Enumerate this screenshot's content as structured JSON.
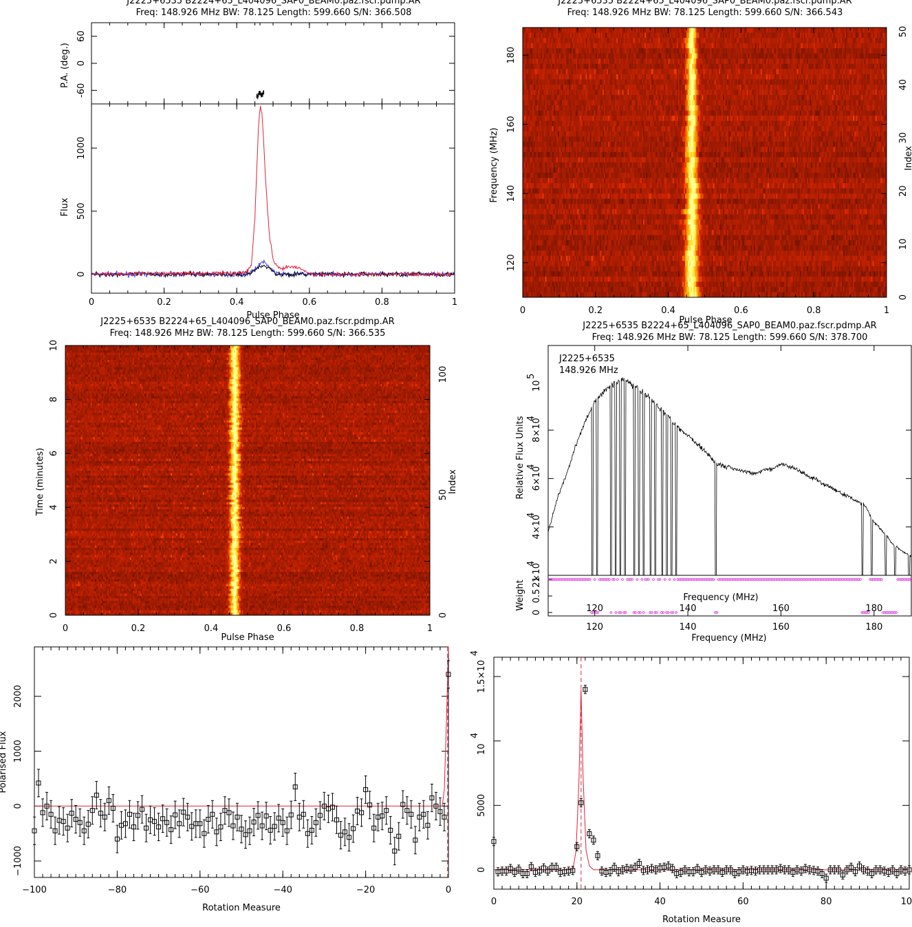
{
  "title_fscr": "J2225+6535 B2224+65_L404096_SAP0_BEAM0.paz.fscr.pdmp.AR",
  "title_paz": "J2225+6535 B2224+65_L404096_SAP0_BEAM0.paz.fscr.pdmp.AR",
  "title_time": "J2225+6535 B2224+65_L404096_SAP0_BEAM0.paz.fscr.pdmp.AR",
  "title_bandpass": "J2225+6535 B2224+65_L404096_SAP0_BEAM0.paz.fscr.pdmp.AR",
  "colors": {
    "flux": "#000000",
    "red": "#e0203a",
    "blue": "#3a3aff",
    "magenta": "#e020e0",
    "hot_low": "#7a1a00",
    "hot_high": "#ffff80"
  },
  "chart_data": [
    {
      "type": "line",
      "subtitle": "Freq: 148.926 MHz BW: 78.125 Length: 599.660 S/N: 366.508",
      "xlabel": "Pulse Phase",
      "ylabel": "Flux",
      "ylabel_top": "P.A. (deg.)",
      "xlim": [
        0,
        1
      ],
      "ylim": [
        -150,
        1350
      ],
      "ylim_top": [
        -90,
        90
      ],
      "xticks": [
        "0",
        "0.2",
        "0.4",
        "0.6",
        "0.8",
        "1"
      ],
      "yticks": [
        "0",
        "500",
        "1000"
      ],
      "yticks_top": [
        "-60",
        "0",
        "60"
      ],
      "series": [
        {
          "x": [
            0,
            0.42,
            0.44,
            0.45,
            0.46,
            0.465,
            0.47,
            0.48,
            0.49,
            0.5,
            0.51,
            0.52,
            0.55,
            0.58,
            0.6,
            1
          ],
          "values": [
            0,
            10,
            60,
            450,
            1180,
            1340,
            1260,
            720,
            300,
            120,
            60,
            40,
            60,
            40,
            0,
            0
          ]
        },
        {
          "x": [
            0,
            0.43,
            0.455,
            0.47,
            0.49,
            0.51,
            1
          ],
          "values": [
            0,
            0,
            50,
            100,
            60,
            0,
            0
          ]
        },
        {
          "x": [
            0,
            0.43,
            0.455,
            0.47,
            0.49,
            0.51,
            1
          ],
          "values": [
            0,
            0,
            40,
            80,
            45,
            0,
            0
          ]
        }
      ]
    },
    {
      "type": "heatmap",
      "subtitle": "Freq: 148.926 MHz BW: 78.125 Length: 599.660 S/N: 366.543",
      "xlabel": "Pulse Phase",
      "ylabel": "Frequency (MHz)",
      "ylabel_right": "Index",
      "xlim": [
        0,
        1
      ],
      "ylim": [
        110,
        188
      ],
      "xticks": [
        "0",
        "0.2",
        "0.4",
        "0.6",
        "0.8",
        "1"
      ],
      "yticks": [
        "120",
        "140",
        "160",
        "180"
      ],
      "yticks_right": [
        "0",
        "10",
        "20",
        "30",
        "40",
        "50"
      ],
      "pulse_phase_center": 0.465
    },
    {
      "type": "heatmap",
      "subtitle": "Freq: 148.926 MHz BW: 78.125 Length: 599.660 S/N: 366.535",
      "xlabel": "Pulse Phase",
      "ylabel": "Time (minutes)",
      "ylabel_right": "Index",
      "xlim": [
        0,
        1
      ],
      "ylim": [
        0,
        10
      ],
      "xticks": [
        "0",
        "0.2",
        "0.4",
        "0.6",
        "0.8",
        "1"
      ],
      "yticks": [
        "0",
        "2",
        "4",
        "6",
        "8",
        "10"
      ],
      "yticks_right": [
        "0",
        "50",
        "100"
      ],
      "pulse_phase_center": 0.465
    },
    {
      "type": "line",
      "subtitle": "Freq: 148.926 MHz BW: 78.125 Length: 599.660 S/N: 378.700",
      "legend": [
        "J2225+6535",
        "148.926 MHz"
      ],
      "xlabel": "Frequency (MHz)",
      "xlabel_inner": "Frequency (MHz)",
      "ylabel": "Relative Flux Units",
      "ylabel_bottom": "Weight",
      "xlim": [
        110,
        188
      ],
      "ylim": [
        20000,
        115000
      ],
      "xticks": [
        "120",
        "140",
        "160",
        "180"
      ],
      "yticks_main": [
        "2",
        "4",
        "6",
        "8"
      ],
      "ytick_exp": "10",
      "ytick_pow": "4",
      "ytick_top": "10",
      "ytick_top_pow": "5",
      "yticks_weight": [
        "0",
        "0.5",
        "1"
      ],
      "x": [
        110,
        112,
        114,
        116,
        118,
        120,
        122,
        124,
        126,
        128,
        130,
        132,
        134,
        136,
        138,
        140,
        142,
        144,
        146,
        148,
        150,
        152,
        154,
        156,
        158,
        160,
        162,
        164,
        166,
        168,
        170,
        172,
        174,
        176,
        178,
        180,
        182,
        184,
        186,
        188
      ],
      "values": [
        38000,
        52000,
        62000,
        74000,
        84000,
        92000,
        96000,
        99000,
        101000,
        99000,
        96000,
        93000,
        89000,
        85000,
        81000,
        78000,
        74000,
        71000,
        66000,
        65000,
        64000,
        63000,
        62000,
        63000,
        64000,
        66000,
        65000,
        63000,
        61000,
        59000,
        57000,
        55000,
        53000,
        51000,
        49000,
        42000,
        38000,
        33000,
        30000,
        28000
      ],
      "dropouts": [
        119.5,
        120.5,
        123.5,
        124.5,
        125.5,
        126.5,
        128.5,
        129.5,
        130.5,
        132,
        133,
        134.5,
        135.5,
        136.5,
        137.5,
        146,
        177.5,
        179.5,
        182.5,
        184.5,
        187.5
      ],
      "weight_zero": [
        119.5,
        120.5,
        123.5,
        124.5,
        125.5,
        126.5,
        128.5,
        129.5,
        130.5,
        132,
        133,
        134.5,
        135.5,
        136.5,
        137.5,
        146,
        177.5,
        178,
        178.5,
        182,
        182.5,
        183,
        183.5,
        184,
        184.5
      ]
    },
    {
      "type": "scatter",
      "xlabel": "Rotation Measure",
      "ylabel": "Polarised Flux",
      "xlim": [
        -100,
        0
      ],
      "ylim": [
        -1300,
        2900
      ],
      "xticks": [
        "−100",
        "−80",
        "−60",
        "−40",
        "−20",
        "0"
      ],
      "yticks": [
        "−1000",
        "0",
        "1000",
        "2000"
      ],
      "x": [
        -100,
        -99,
        -98,
        -97,
        -96,
        -95,
        -94,
        -93,
        -92,
        -91,
        -90,
        -89,
        -88,
        -87,
        -86,
        -85,
        -84,
        -83,
        -82,
        -81,
        -80,
        -79,
        -78,
        -77,
        -76,
        -75,
        -74,
        -73,
        -72,
        -71,
        -70,
        -69,
        -68,
        -67,
        -66,
        -65,
        -64,
        -63,
        -62,
        -61,
        -60,
        -59,
        -58,
        -57,
        -56,
        -55,
        -54,
        -53,
        -52,
        -51,
        -50,
        -49,
        -48,
        -47,
        -46,
        -45,
        -44,
        -43,
        -42,
        -41,
        -40,
        -39,
        -38,
        -37,
        -36,
        -35,
        -34,
        -33,
        -32,
        -31,
        -30,
        -29,
        -28,
        -27,
        -26,
        -25,
        -24,
        -23,
        -22,
        -21,
        -20,
        -19,
        -18,
        -17,
        -16,
        -15,
        -14,
        -13,
        -12,
        -11,
        -10,
        -9,
        -8,
        -7,
        -6,
        -5,
        -4,
        -3,
        -2,
        -1,
        0
      ],
      "values": [
        -450,
        420,
        -120,
        0,
        -150,
        -450,
        -260,
        -280,
        -400,
        -130,
        -240,
        -300,
        -450,
        -330,
        -80,
        200,
        -130,
        -200,
        100,
        -40,
        -600,
        -350,
        -320,
        -150,
        -380,
        -170,
        -60,
        -400,
        -250,
        -280,
        -380,
        -230,
        -300,
        -430,
        -160,
        -320,
        -110,
        -200,
        -370,
        -320,
        -320,
        -500,
        -240,
        -150,
        -470,
        -380,
        -80,
        -120,
        -360,
        -200,
        -420,
        -520,
        -450,
        -290,
        -170,
        -360,
        -180,
        -440,
        -370,
        -220,
        -300,
        -450,
        -160,
        350,
        -200,
        -150,
        -500,
        -440,
        -300,
        -170,
        0,
        -50,
        -20,
        -250,
        -530,
        -470,
        -570,
        -410,
        -90,
        -120,
        300,
        20,
        -400,
        -200,
        -180,
        -80,
        -440,
        -820,
        -550,
        30,
        -80,
        -150,
        -620,
        -200,
        -150,
        -350,
        150,
        0,
        -100,
        -200,
        2400
      ],
      "fit_x": [
        -100,
        -1.5,
        -1,
        -0.5,
        0
      ],
      "fit_values": [
        0,
        0,
        300,
        1500,
        2900
      ],
      "marker_x": -0.2
    },
    {
      "type": "scatter",
      "xlabel": "Rotation Measure",
      "ylabel": "Polarised Flux",
      "xlim": [
        0,
        100
      ],
      "ylim": [
        -1500,
        16500
      ],
      "xticks": [
        "0",
        "20",
        "40",
        "60",
        "80",
        "100"
      ],
      "yticks": [
        "0",
        "5000"
      ],
      "ytick_exp": "10",
      "ytick_pow": "4",
      "yticks_mant": [
        "1.5×10",
        "10"
      ],
      "x": [
        0,
        1,
        2,
        3,
        4,
        5,
        6,
        7,
        8,
        9,
        10,
        11,
        12,
        13,
        14,
        15,
        16,
        17,
        18,
        19,
        20,
        21,
        22,
        23,
        24,
        25,
        26,
        27,
        28,
        29,
        30,
        31,
        32,
        33,
        34,
        35,
        36,
        37,
        38,
        39,
        40,
        41,
        42,
        43,
        44,
        45,
        46,
        47,
        48,
        49,
        50,
        51,
        52,
        53,
        54,
        55,
        56,
        57,
        58,
        59,
        60,
        61,
        62,
        63,
        64,
        65,
        66,
        67,
        68,
        69,
        70,
        71,
        72,
        73,
        74,
        75,
        76,
        77,
        78,
        79,
        80,
        81,
        82,
        83,
        84,
        85,
        86,
        87,
        88,
        89,
        90,
        91,
        92,
        93,
        94,
        95,
        96,
        97,
        98,
        99,
        100
      ],
      "values": [
        2200,
        -150,
        -100,
        -100,
        100,
        -200,
        50,
        -300,
        -300,
        250,
        -200,
        -100,
        150,
        -100,
        200,
        200,
        -200,
        -150,
        -100,
        -50,
        1800,
        5200,
        14000,
        2800,
        2300,
        1100,
        -100,
        -200,
        -150,
        200,
        -150,
        0,
        100,
        50,
        200,
        500,
        -50,
        0,
        100,
        0,
        150,
        200,
        300,
        100,
        -300,
        -200,
        0,
        -150,
        -150,
        100,
        -200,
        0,
        -100,
        0,
        0,
        -200,
        0,
        0,
        -300,
        -150,
        0,
        -100,
        -50,
        -100,
        0,
        0,
        0,
        0,
        0,
        100,
        0,
        0,
        -200,
        0,
        -100,
        100,
        0,
        -50,
        -100,
        -300,
        -650,
        0,
        0,
        0,
        -400,
        0,
        200,
        -150,
        300,
        0,
        -100,
        -300,
        0,
        0,
        -100,
        -200,
        0,
        -300,
        0,
        -100,
        0
      ],
      "fit_x": [
        0,
        19,
        19.8,
        20.5,
        21,
        21.5,
        22.2,
        23,
        24,
        100
      ],
      "fit_values": [
        0,
        0,
        1500,
        7000,
        14000,
        7000,
        1500,
        300,
        0,
        0
      ],
      "marker_x": 21
    }
  ]
}
